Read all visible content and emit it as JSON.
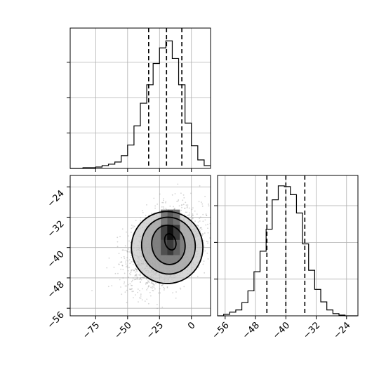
{
  "chart_data": [
    {
      "type": "histogram",
      "panel": "top-left",
      "parameter_index": 0,
      "xlim": [
        -95,
        15
      ],
      "grid": true,
      "tick_labels_shown": false,
      "bins": {
        "edges_start": -95,
        "bin_width": 5,
        "counts": [
          0,
          0,
          1,
          1,
          2,
          4,
          6,
          9,
          18,
          33,
          60,
          92,
          118,
          148,
          170,
          180,
          155,
          118,
          64,
          32,
          12,
          4
        ]
      },
      "quantile_lines": [
        -33.5,
        -19.5,
        -7.5
      ]
    },
    {
      "type": "scatter",
      "panel": "bottom-left",
      "subtype": "2d-density-with-contours",
      "x_parameter_index": 0,
      "y_parameter_index": 1,
      "xlim": [
        -95,
        15
      ],
      "ylim": [
        -58,
        -21
      ],
      "grid": true,
      "x_ticks": [
        -75,
        -50,
        -25,
        0
      ],
      "y_ticks": [
        -24,
        -32,
        -40,
        -48,
        -56
      ],
      "x_tick_labels": [
        "−75",
        "−50",
        "−25",
        "0"
      ],
      "y_tick_labels": [
        "−24",
        "−32",
        "−40",
        "−48",
        "−56"
      ],
      "point_cloud": {
        "center": [
          -20,
          -40
        ],
        "sigma_x": 14,
        "sigma_y": 5,
        "correlation": 0.35
      },
      "contour_levels": [
        {
          "center": [
            -19,
            -40
          ],
          "rx": 28,
          "ry": 9.5,
          "tilt": 0.15
        },
        {
          "center": [
            -18,
            -39.5
          ],
          "rx": 21,
          "ry": 7.5,
          "tilt": 0.15
        },
        {
          "center": [
            -18,
            -39.3
          ],
          "rx": 13,
          "ry": 5.2,
          "tilt": 0.18
        },
        {
          "center": [
            -16.5,
            -38.5
          ],
          "rx": 4.2,
          "ry": 2.2,
          "tilt": 0.3
        }
      ]
    },
    {
      "type": "histogram",
      "panel": "bottom-right",
      "parameter_index": 1,
      "xlim": [
        -58,
        -21
      ],
      "grid": true,
      "x_ticks": [
        -56,
        -48,
        -40,
        -32,
        -24
      ],
      "x_tick_labels": [
        "−56",
        "−48",
        "−40",
        "−32",
        "−24"
      ],
      "bins": {
        "edges_start": -58,
        "bin_width": 1.6,
        "counts": [
          0,
          2,
          5,
          8,
          18,
          34,
          60,
          88,
          118,
          158,
          177,
          176,
          165,
          140,
          98,
          62,
          36,
          19,
          8,
          3,
          1,
          0,
          0
        ]
      },
      "quantile_lines": [
        -45,
        -40,
        -35
      ]
    }
  ]
}
